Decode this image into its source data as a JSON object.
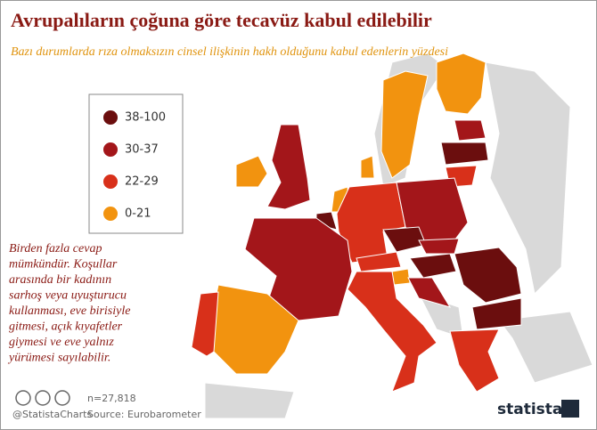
{
  "title": "Avrupalıların çoğuna göre tecavüz kabul edilebilir",
  "subtitle": "Bazı durumlarda rıza olmaksızın cinsel ilişkinin hakh olduğunu  kabul edenlerin yüzdesi",
  "legend": [
    {
      "label": "38-100",
      "color": "#6b0e0e"
    },
    {
      "label": "30-37",
      "color": "#a3161a"
    },
    {
      "label": "22-29",
      "color": "#d8301a"
    },
    {
      "label": "0-21",
      "color": "#f2930f"
    }
  ],
  "note": [
    "Birden fazla cevap",
    "mümkündür. Koşullar",
    "arasında bir kadının",
    "sarhoş veya uyuşturucu",
    "kullanması, eve birisiyle",
    "gitmesi, açık kıyafetler",
    "giymesi ve eve yalnız",
    "yürümesi sayılabilir."
  ],
  "footer": {
    "license": "@StatistaCharts",
    "sample": "n=27,818",
    "source": "Source: Eurobarometer",
    "brand": "statista"
  }
}
